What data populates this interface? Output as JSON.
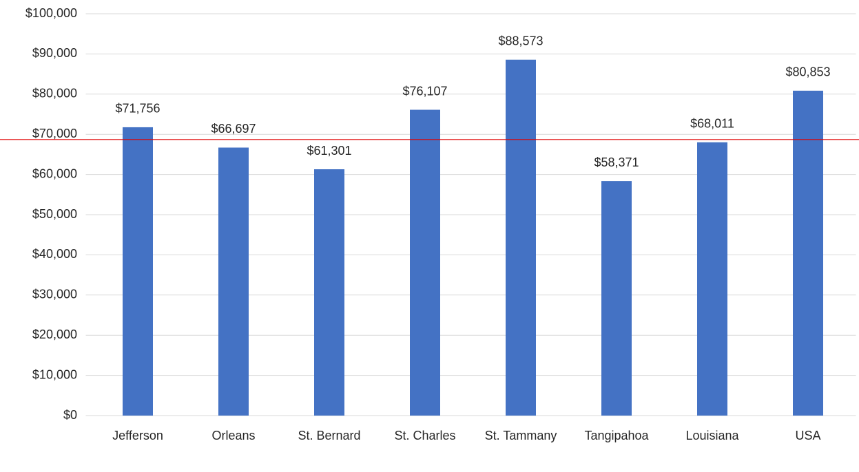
{
  "chart_data": {
    "type": "bar",
    "categories": [
      "Jefferson",
      "Orleans",
      "St. Bernard",
      "St. Charles",
      "St. Tammany",
      "Tangipahoa",
      "Louisiana",
      "USA"
    ],
    "values": [
      71756,
      66697,
      61301,
      76107,
      88573,
      58371,
      68011,
      80853
    ],
    "value_labels": [
      "$71,756",
      "$66,697",
      "$61,301",
      "$76,107",
      "$88,573",
      "$58,371",
      "$68,011",
      "$80,853"
    ],
    "color": "#4472c4",
    "ylim": [
      0,
      100000
    ],
    "yticks": [
      {
        "value": 0,
        "label": "$0"
      },
      {
        "value": 10000,
        "label": "$10,000"
      },
      {
        "value": 20000,
        "label": "$20,000"
      },
      {
        "value": 30000,
        "label": "$30,000"
      },
      {
        "value": 40000,
        "label": "$40,000"
      },
      {
        "value": 50000,
        "label": "$50,000"
      },
      {
        "value": 60000,
        "label": "$60,000"
      },
      {
        "value": 70000,
        "label": "$70,000"
      },
      {
        "value": 80000,
        "label": "$80,000"
      },
      {
        "value": 90000,
        "label": "$90,000"
      },
      {
        "value": 100000,
        "label": "$100,000"
      }
    ],
    "grid": true,
    "reference_line": {
      "value": 68700,
      "color": "#e00000"
    }
  }
}
